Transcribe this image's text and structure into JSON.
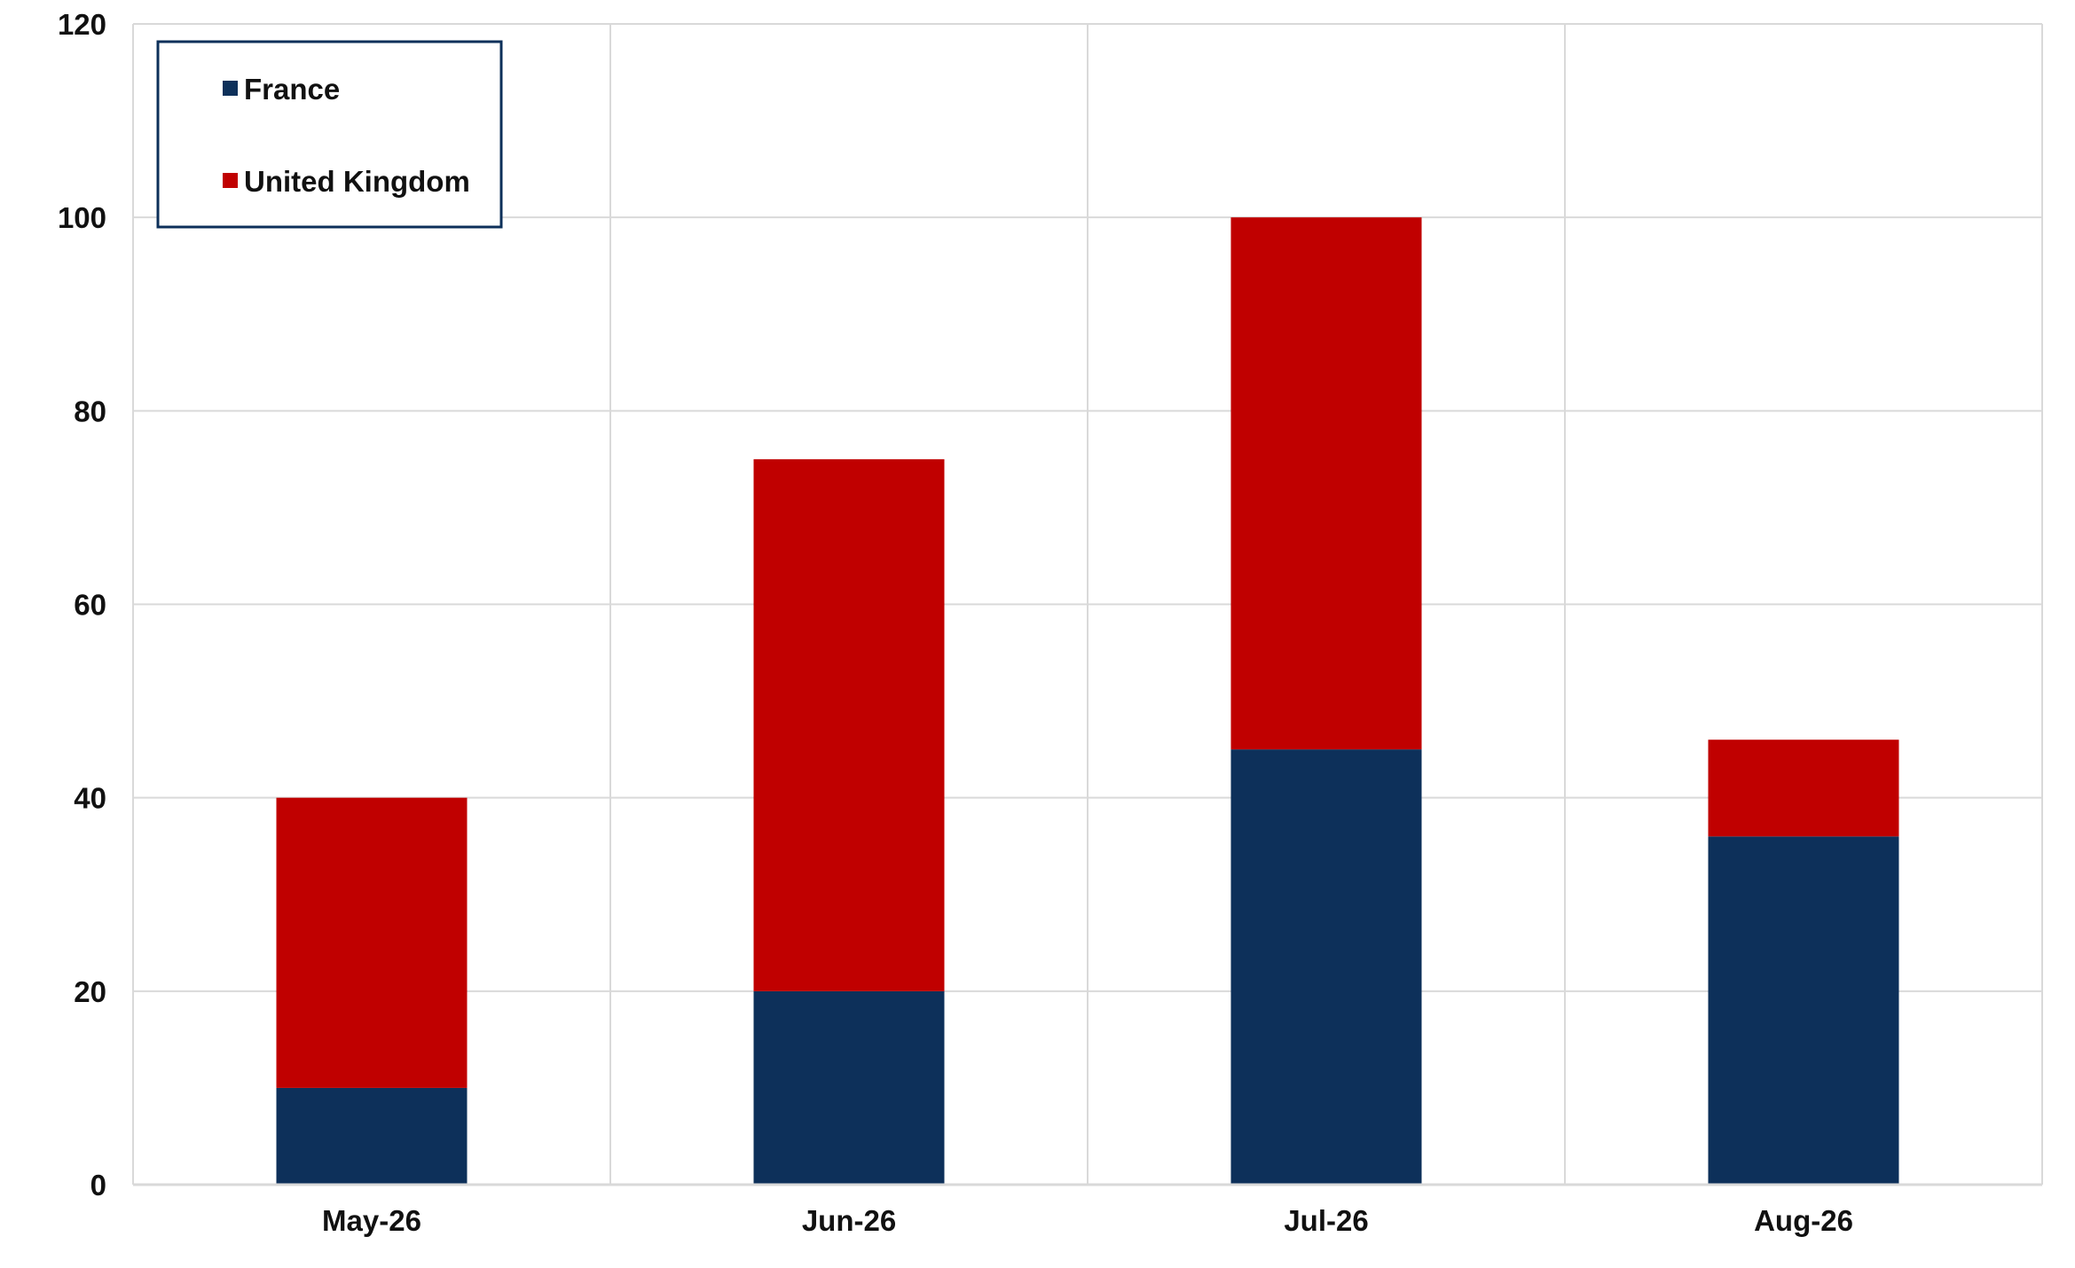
{
  "chart_data": {
    "type": "bar",
    "stacked": true,
    "title": "",
    "xlabel": "",
    "ylabel": "",
    "categories": [
      "May-26",
      "Jun-26",
      "Jul-26",
      "Aug-26"
    ],
    "series": [
      {
        "name": "France",
        "values": [
          10,
          20,
          45,
          36
        ],
        "color": "#0d305a"
      },
      {
        "name": "United Kingdom",
        "values": [
          30,
          55,
          55,
          10
        ],
        "color": "#c00000"
      }
    ],
    "ylim": [
      0,
      120
    ],
    "yticks": [
      0,
      20,
      40,
      60,
      80,
      100,
      120
    ],
    "grid": true,
    "legend_position": "top-left",
    "legend_border_color": "#0d305a"
  }
}
